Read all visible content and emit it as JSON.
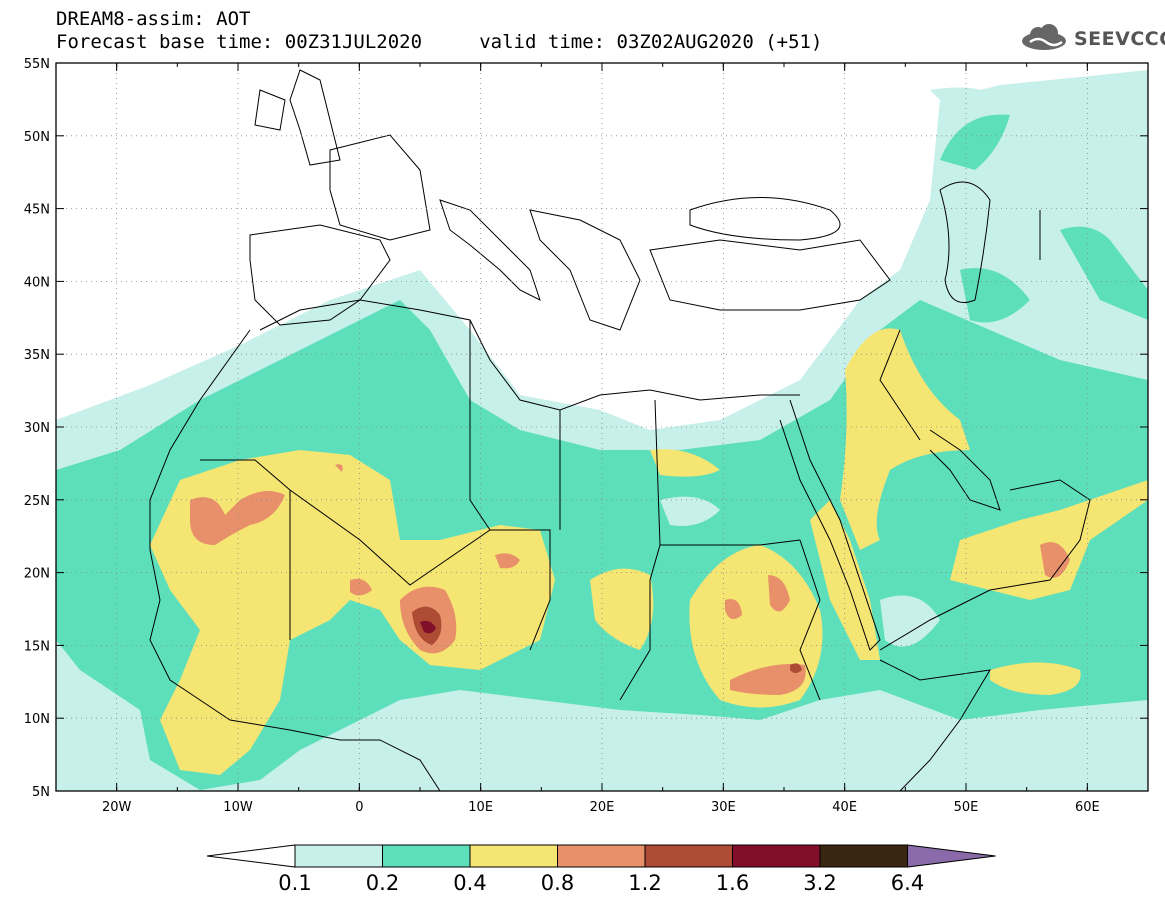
{
  "header": {
    "line1": "DREAM8-assim: AOT",
    "line2": "Forecast base time: 00Z31JUL2020     valid time: 03Z02AUG2020 (+51)",
    "logo_text": "SEEVCCC"
  },
  "map": {
    "region": "North Africa, Europe and Middle East",
    "lon_range": [
      -25,
      65
    ],
    "lat_range": [
      5,
      55
    ],
    "x_ticks": [
      "20W",
      "10W",
      "0",
      "10E",
      "20E",
      "30E",
      "40E",
      "50E",
      "60E"
    ],
    "y_ticks": [
      "55N",
      "50N",
      "45N",
      "40N",
      "35N",
      "30N",
      "25N",
      "20N",
      "15N",
      "10N",
      "5N"
    ],
    "gridlines": "dotted"
  },
  "colorbar": {
    "labels": [
      "0.1",
      "0.2",
      "0.4",
      "0.8",
      "1.2",
      "1.6",
      "3.2",
      "6.4"
    ],
    "colors": [
      "#c8f0ea",
      "#5ddfbc",
      "#f5e573",
      "#e8906a",
      "#ad4b35",
      "#820e2a",
      "#3a2412",
      "#8a6aa8"
    ]
  }
}
